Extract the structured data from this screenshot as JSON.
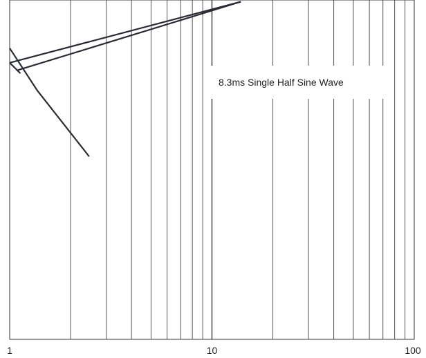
{
  "chart_data": {
    "type": "line",
    "x_scale": "log",
    "xlim": [
      1,
      100
    ],
    "x_ticks": [
      {
        "value": 1,
        "label": "1"
      },
      {
        "value": 10,
        "label": "10"
      },
      {
        "value": 100,
        "label": "100"
      }
    ],
    "minor_gridlines_x": [
      2,
      3,
      4,
      5,
      6,
      7,
      8,
      9,
      20,
      30,
      40,
      50,
      60,
      70,
      80,
      90
    ],
    "grid": "vertical",
    "ylim": [
      0,
      1
    ],
    "annotation": "8.3ms Single Half Sine Wave",
    "series": [
      {
        "color": "#2b2b36",
        "x": [
          1.0,
          1.37,
          2.47
        ],
        "y": [
          0.858,
          0.733,
          0.539
        ]
      },
      {
        "color": "#2b2b36",
        "x": [
          1.0,
          13.9
        ],
        "y": [
          0.815,
          0.995
        ]
      },
      {
        "color": "#2b2b36",
        "x": [
          1.08,
          13.9
        ],
        "y": [
          0.792,
          0.995
        ]
      },
      {
        "color": "#2b2b36",
        "x": [
          1.0,
          1.13
        ],
        "y": [
          0.815,
          0.784
        ]
      }
    ],
    "line_color": "#2b2b36",
    "grid_color": "#555555"
  }
}
